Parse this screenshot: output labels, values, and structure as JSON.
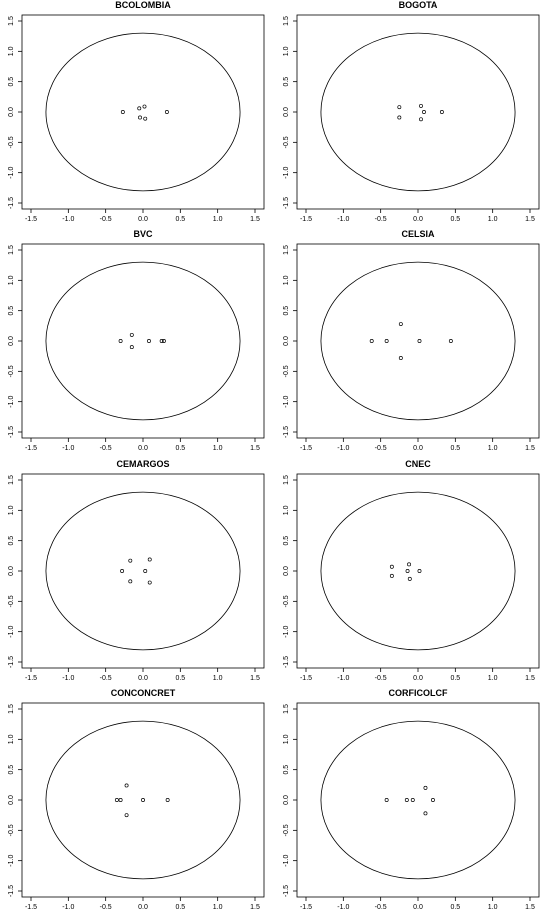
{
  "chart_data": [
    {
      "type": "scatter",
      "title": "BCOLOMBIA",
      "xlim": [
        -1.5,
        1.5
      ],
      "ylim": [
        -1.5,
        1.5
      ],
      "xticks": [
        "-1.5",
        "-1.0",
        "-0.5",
        "0.0",
        "0.5",
        "1.0",
        "1.5"
      ],
      "yticks": [
        "-1.5",
        "-1.0",
        "-0.5",
        "0.0",
        "0.5",
        "1.0",
        "1.5"
      ],
      "circle_radius": 1.3,
      "points": [
        {
          "x": -0.27,
          "y": 0.0
        },
        {
          "x": -0.05,
          "y": 0.06
        },
        {
          "x": 0.02,
          "y": 0.09
        },
        {
          "x": -0.04,
          "y": -0.09
        },
        {
          "x": 0.03,
          "y": -0.11
        },
        {
          "x": 0.32,
          "y": 0.0
        }
      ]
    },
    {
      "type": "scatter",
      "title": "BOGOTA",
      "xlim": [
        -1.5,
        1.5
      ],
      "ylim": [
        -1.5,
        1.5
      ],
      "xticks": [
        "-1.5",
        "-1.0",
        "-0.5",
        "0.0",
        "0.5",
        "1.0",
        "1.5"
      ],
      "yticks": [
        "-1.5",
        "-1.0",
        "-0.5",
        "0.0",
        "0.5",
        "1.0",
        "1.5"
      ],
      "circle_radius": 1.3,
      "points": [
        {
          "x": -0.25,
          "y": 0.08
        },
        {
          "x": -0.25,
          "y": -0.09
        },
        {
          "x": 0.04,
          "y": 0.1
        },
        {
          "x": 0.08,
          "y": 0.0
        },
        {
          "x": 0.04,
          "y": -0.12
        },
        {
          "x": 0.32,
          "y": 0.0
        }
      ]
    },
    {
      "type": "scatter",
      "title": "BVC",
      "xlim": [
        -1.5,
        1.5
      ],
      "ylim": [
        -1.5,
        1.5
      ],
      "xticks": [
        "-1.5",
        "-1.0",
        "-0.5",
        "0.0",
        "0.5",
        "1.0",
        "1.5"
      ],
      "yticks": [
        "-1.5",
        "-1.0",
        "-0.5",
        "0.0",
        "0.5",
        "1.0",
        "1.5"
      ],
      "circle_radius": 1.3,
      "points": [
        {
          "x": -0.3,
          "y": 0.0
        },
        {
          "x": -0.15,
          "y": 0.1
        },
        {
          "x": -0.15,
          "y": -0.1
        },
        {
          "x": 0.08,
          "y": 0.0
        },
        {
          "x": 0.25,
          "y": 0.0
        },
        {
          "x": 0.28,
          "y": 0.0
        }
      ]
    },
    {
      "type": "scatter",
      "title": "CELSIA",
      "xlim": [
        -1.5,
        1.5
      ],
      "ylim": [
        -1.5,
        1.5
      ],
      "xticks": [
        "-1.5",
        "-1.0",
        "-0.5",
        "0.0",
        "0.5",
        "1.0",
        "1.5"
      ],
      "yticks": [
        "-1.5",
        "-1.0",
        "-0.5",
        "0.0",
        "0.5",
        "1.0",
        "1.5"
      ],
      "circle_radius": 1.3,
      "points": [
        {
          "x": -0.62,
          "y": 0.0
        },
        {
          "x": -0.42,
          "y": 0.0
        },
        {
          "x": -0.23,
          "y": 0.28
        },
        {
          "x": -0.23,
          "y": -0.28
        },
        {
          "x": 0.02,
          "y": 0.0
        },
        {
          "x": 0.44,
          "y": 0.0
        }
      ]
    },
    {
      "type": "scatter",
      "title": "CEMARGOS",
      "xlim": [
        -1.5,
        1.5
      ],
      "ylim": [
        -1.5,
        1.5
      ],
      "xticks": [
        "-1.5",
        "-1.0",
        "-0.5",
        "0.0",
        "0.5",
        "1.0",
        "1.5"
      ],
      "yticks": [
        "-1.5",
        "-1.0",
        "-0.5",
        "0.0",
        "0.5",
        "1.0",
        "1.5"
      ],
      "circle_radius": 1.3,
      "points": [
        {
          "x": -0.28,
          "y": 0.0
        },
        {
          "x": -0.17,
          "y": 0.17
        },
        {
          "x": -0.17,
          "y": -0.17
        },
        {
          "x": 0.03,
          "y": 0.0
        },
        {
          "x": 0.09,
          "y": 0.19
        },
        {
          "x": 0.09,
          "y": -0.19
        }
      ]
    },
    {
      "type": "scatter",
      "title": "CNEC",
      "xlim": [
        -1.5,
        1.5
      ],
      "ylim": [
        -1.5,
        1.5
      ],
      "xticks": [
        "-1.5",
        "-1.0",
        "-0.5",
        "0.0",
        "0.5",
        "1.0",
        "1.5"
      ],
      "yticks": [
        "-1.5",
        "-1.0",
        "-0.5",
        "0.0",
        "0.5",
        "1.0",
        "1.5"
      ],
      "circle_radius": 1.3,
      "points": [
        {
          "x": -0.35,
          "y": 0.07
        },
        {
          "x": -0.35,
          "y": -0.08
        },
        {
          "x": -0.12,
          "y": 0.11
        },
        {
          "x": -0.14,
          "y": 0.0
        },
        {
          "x": -0.11,
          "y": -0.13
        },
        {
          "x": 0.02,
          "y": 0.0
        }
      ]
    },
    {
      "type": "scatter",
      "title": "CONCONCRET",
      "xlim": [
        -1.5,
        1.5
      ],
      "ylim": [
        -1.5,
        1.5
      ],
      "xticks": [
        "-1.5",
        "-1.0",
        "-0.5",
        "0.0",
        "0.5",
        "1.0",
        "1.5"
      ],
      "yticks": [
        "-1.5",
        "-1.0",
        "-0.5",
        "0.0",
        "0.5",
        "1.0",
        "1.5"
      ],
      "circle_radius": 1.3,
      "points": [
        {
          "x": -0.35,
          "y": 0.0
        },
        {
          "x": -0.3,
          "y": 0.0
        },
        {
          "x": -0.22,
          "y": 0.24
        },
        {
          "x": -0.22,
          "y": -0.25
        },
        {
          "x": 0.0,
          "y": 0.0
        },
        {
          "x": 0.33,
          "y": 0.0
        }
      ]
    },
    {
      "type": "scatter",
      "title": "CORFICOLCF",
      "xlim": [
        -1.5,
        1.5
      ],
      "ylim": [
        -1.5,
        1.5
      ],
      "xticks": [
        "-1.5",
        "-1.0",
        "-0.5",
        "0.0",
        "0.5",
        "1.0",
        "1.5"
      ],
      "yticks": [
        "-1.5",
        "-1.0",
        "-0.5",
        "0.0",
        "0.5",
        "1.0",
        "1.5"
      ],
      "circle_radius": 1.3,
      "points": [
        {
          "x": -0.42,
          "y": 0.0
        },
        {
          "x": -0.15,
          "y": 0.0
        },
        {
          "x": -0.07,
          "y": 0.0
        },
        {
          "x": 0.1,
          "y": 0.2
        },
        {
          "x": 0.1,
          "y": -0.22
        },
        {
          "x": 0.2,
          "y": 0.0
        }
      ]
    }
  ]
}
